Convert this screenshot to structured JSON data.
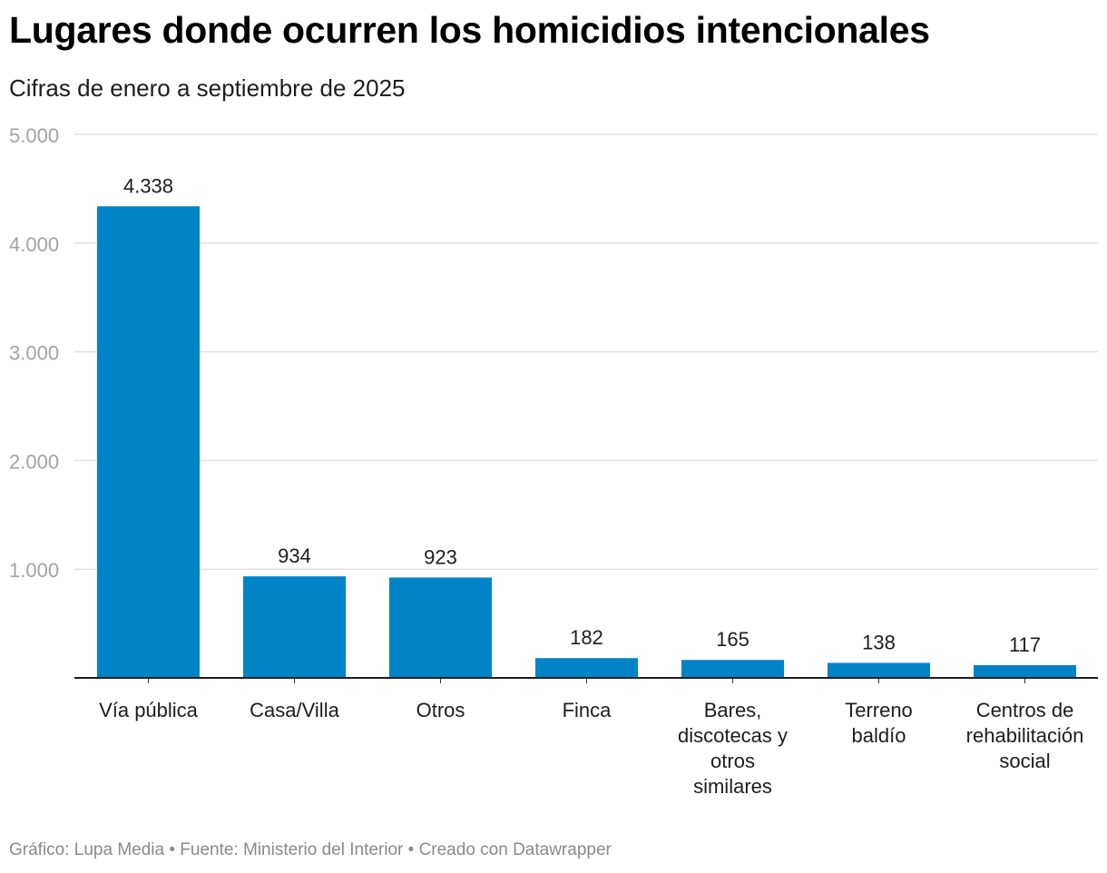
{
  "chart_data": {
    "type": "bar",
    "title": "Lugares donde ocurren los homicidios intencionales",
    "subtitle": "Cifras de enero a septiembre de 2025",
    "categories": [
      [
        "Vía pública"
      ],
      [
        "Casa/Villa"
      ],
      [
        "Otros"
      ],
      [
        "Finca"
      ],
      [
        "Bares,",
        "discotecas y",
        "otros",
        "similares"
      ],
      [
        "Terreno",
        "baldío"
      ],
      [
        "Centros de",
        "rehabilitación",
        "social"
      ]
    ],
    "values": [
      4338,
      934,
      923,
      182,
      165,
      138,
      117
    ],
    "value_labels": [
      "4.338",
      "934",
      "923",
      "182",
      "165",
      "138",
      "117"
    ],
    "y_ticks": [
      1000,
      2000,
      3000,
      4000,
      5000
    ],
    "y_tick_labels": [
      "1.000",
      "2.000",
      "3.000",
      "4.000",
      "5.000"
    ],
    "ylim": [
      0,
      5000
    ],
    "xlabel": "",
    "ylabel": "",
    "grid": true,
    "bar_color": "#0083c7"
  },
  "footer": {
    "text": "Gráfico: Lupa Media • Fuente: Ministerio del Interior • Creado con Datawrapper"
  }
}
